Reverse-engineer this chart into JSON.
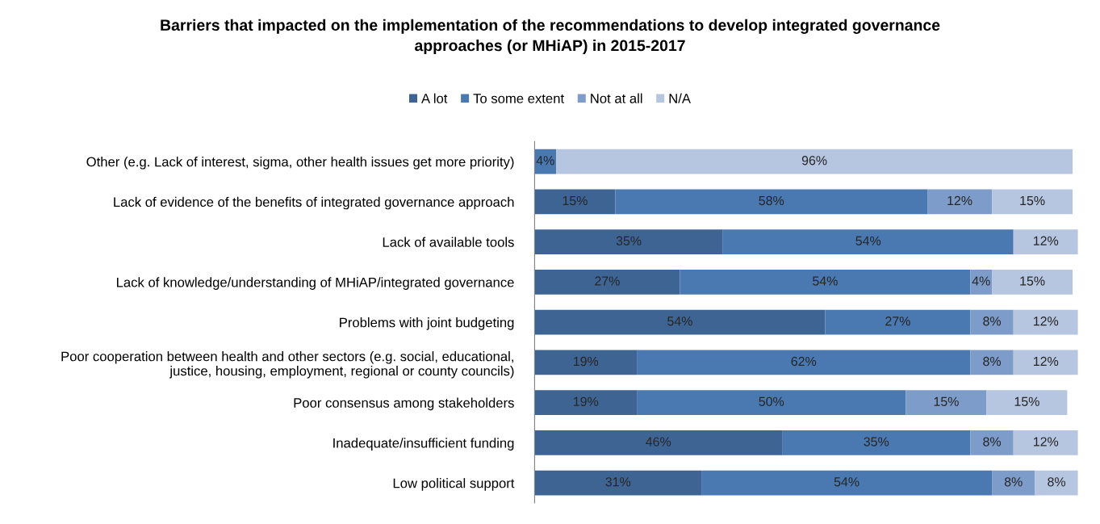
{
  "chart_data": {
    "type": "bar",
    "orientation": "horizontal",
    "stacked": true,
    "title": "Barriers that impacted on the implementation of the recommendations to develop integrated governance\napproaches (or MHiAP) in 2015-2017",
    "categories": [
      "Other (e.g. Lack of interest, sigma, other health issues get more priority)",
      "Lack of evidence of the benefits of integrated governance approach",
      "Lack of available tools",
      "Lack of knowledge/understanding of MHiAP/integrated governance",
      "Problems with joint budgeting",
      "Poor cooperation between health and other sectors (e.g. social, educational,\njustice, housing, employment, regional or county councils)",
      "Poor consensus among stakeholders",
      "Inadequate/insufficient funding",
      "Low political support"
    ],
    "series": [
      {
        "name": "A lot",
        "color": "#3e6494",
        "values": [
          null,
          15,
          35,
          27,
          54,
          19,
          19,
          46,
          31
        ],
        "value_labels": [
          null,
          "15%",
          "35%",
          "27%",
          "54%",
          "19%",
          "19%",
          "46%",
          "31%"
        ]
      },
      {
        "name": "To some extent",
        "color": "#4a78b0",
        "values": [
          4,
          58,
          54,
          54,
          27,
          62,
          50,
          35,
          54
        ],
        "value_labels": [
          "4%",
          "58%",
          "54%",
          "54%",
          "27%",
          "62%",
          "50%",
          "35%",
          "54%"
        ]
      },
      {
        "name": "Not at all",
        "color": "#7d9cca",
        "values": [
          null,
          12,
          null,
          4,
          8,
          8,
          15,
          8,
          8
        ],
        "value_labels": [
          null,
          "12%",
          null,
          "4%",
          "8%",
          "8%",
          "15%",
          "8%",
          "8%"
        ]
      },
      {
        "name": "N/A",
        "color": "#b6c5e0",
        "values": [
          96,
          15,
          12,
          15,
          12,
          12,
          15,
          12,
          8
        ],
        "value_labels": [
          "96%",
          "15%",
          "12%",
          "15%",
          "12%",
          "12%",
          "15%",
          "12%",
          "8%"
        ]
      }
    ],
    "legend": "top",
    "grid": false,
    "tick_labels": "y"
  }
}
